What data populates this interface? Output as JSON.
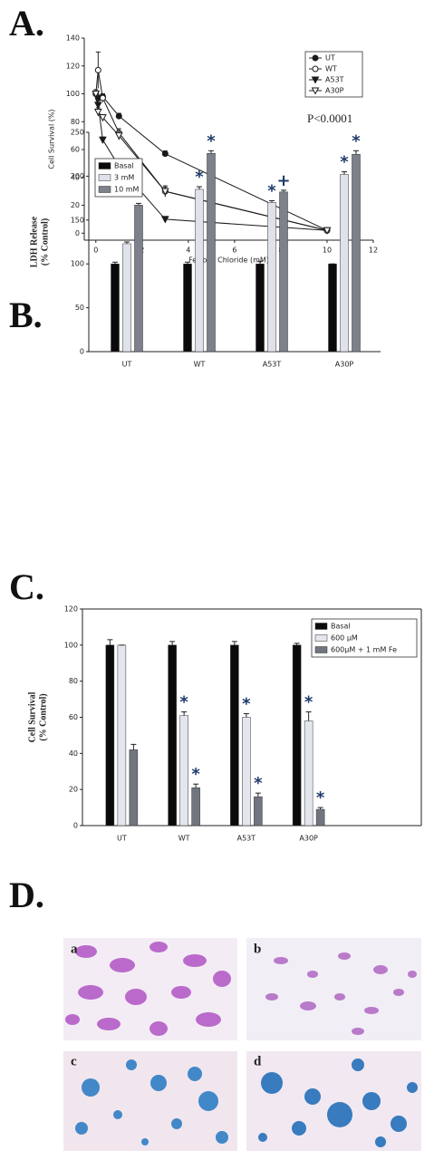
{
  "panel_labels": [
    "A.",
    "B.",
    "C.",
    "D."
  ],
  "chart_data": [
    {
      "type": "line",
      "x_label": "Ferrous Chloride (mM)",
      "y_label": "Cell Survival (%)",
      "annotation": "P<0.0001",
      "x": [
        0,
        0.1,
        0.3,
        1,
        3,
        10
      ],
      "xlim": [
        -0.5,
        12
      ],
      "xticks": [
        0,
        2,
        4,
        6,
        8,
        10,
        12
      ],
      "ylim": [
        -5,
        140
      ],
      "yticks": [
        0,
        20,
        40,
        60,
        80,
        100,
        120,
        140
      ],
      "legend": "top-right",
      "series": [
        {
          "name": "UT",
          "color": "#1a1a1a",
          "marker": "filled-circle",
          "values": [
            100,
            97,
            98,
            84,
            57,
            2
          ],
          "errors": [
            2,
            2,
            2,
            2,
            2,
            1
          ]
        },
        {
          "name": "WT",
          "color": "#1a1a1a",
          "marker": "open-circle",
          "values": [
            100,
            117,
            97,
            72,
            30,
            2
          ],
          "errors": [
            3,
            13,
            3,
            3,
            4,
            1
          ]
        },
        {
          "name": "A53T",
          "color": "#1a1a1a",
          "marker": "filled-triangle",
          "values": [
            100,
            92,
            67,
            48,
            10,
            2
          ],
          "errors": [
            2,
            3,
            2,
            2,
            2,
            1
          ]
        },
        {
          "name": "A30P",
          "color": "#1a1a1a",
          "marker": "open-triangle",
          "values": [
            100,
            87,
            83,
            70,
            30,
            2
          ],
          "errors": [
            2,
            3,
            2,
            3,
            3,
            1
          ]
        }
      ]
    },
    {
      "type": "bar",
      "y_label": [
        "LDH Release",
        "(% Control)"
      ],
      "categories": [
        "UT",
        "WT",
        "A53T",
        "A30P"
      ],
      "ylim": [
        0,
        250
      ],
      "yticks": [
        0,
        50,
        100,
        150,
        200,
        250
      ],
      "legend": "top-left",
      "series": [
        {
          "name": "Basal",
          "color": "#0a0a0a",
          "values": [
            100,
            100,
            100,
            100
          ],
          "errors": [
            2,
            2,
            3,
            0
          ],
          "markers": [
            null,
            null,
            null,
            null
          ]
        },
        {
          "name": "3 mM",
          "color": "#dfe2ea",
          "values": [
            123,
            185,
            170,
            202
          ],
          "errors": [
            2,
            3,
            2,
            3
          ],
          "markers": [
            null,
            "*",
            "*",
            "*"
          ]
        },
        {
          "name": "10 mM",
          "color": "#7c818c",
          "values": [
            167,
            226,
            182,
            225
          ],
          "errors": [
            2,
            3,
            2,
            4
          ],
          "markers": [
            null,
            "*",
            "+",
            "*"
          ]
        }
      ]
    },
    {
      "type": "bar",
      "y_label": [
        "Cell Survival",
        "(% Control)"
      ],
      "categories": [
        "UT",
        "WT",
        "A53T",
        "A30P"
      ],
      "ylim": [
        0,
        120
      ],
      "yticks": [
        0,
        20,
        40,
        60,
        80,
        100,
        120
      ],
      "legend": "top-right",
      "series": [
        {
          "name": "Basal",
          "color": "#0a0a0a",
          "values": [
            100,
            100,
            100,
            100
          ],
          "errors": [
            3,
            2,
            2,
            1
          ],
          "markers": [
            null,
            null,
            null,
            null
          ]
        },
        {
          "name": "600 μM",
          "color": "#e4e6ee",
          "values": [
            100,
            61,
            60,
            58
          ],
          "errors": [
            0,
            2,
            2,
            5
          ],
          "markers": [
            null,
            "*",
            "*",
            "*"
          ]
        },
        {
          "name": "600μM + 1 mM Fe",
          "color": "#70757f",
          "values": [
            42,
            21,
            16,
            9
          ],
          "errors": [
            3,
            2,
            2,
            1
          ],
          "markers": [
            null,
            "*",
            "*",
            "*"
          ]
        }
      ]
    }
  ],
  "images": {
    "labels": [
      "a",
      "b",
      "c",
      "d"
    ]
  }
}
